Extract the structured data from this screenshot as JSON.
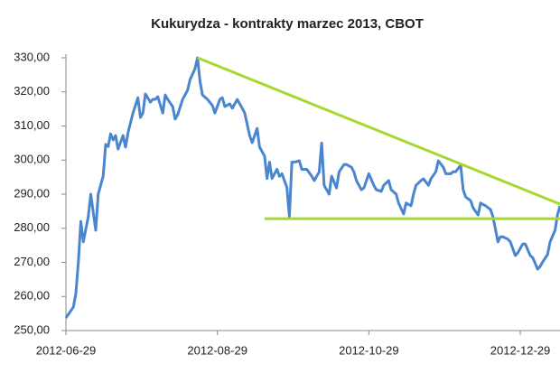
{
  "chart_data": {
    "type": "line",
    "title": "Kukurydza - kontrakty marzec 2013, CBOT",
    "x": [
      "2012-06-29",
      "2012-07-02",
      "2012-07-03",
      "2012-07-04",
      "2012-07-05",
      "2012-07-06",
      "2012-07-08",
      "2012-07-09",
      "2012-07-11",
      "2012-07-12",
      "2012-07-14",
      "2012-07-15",
      "2012-07-16",
      "2012-07-17",
      "2012-07-18",
      "2012-07-19",
      "2012-07-20",
      "2012-07-22",
      "2012-07-23",
      "2012-07-24",
      "2012-07-26",
      "2012-07-28",
      "2012-07-29",
      "2012-07-30",
      "2012-07-31",
      "2012-08-02",
      "2012-08-03",
      "2012-08-04",
      "2012-08-05",
      "2012-08-07",
      "2012-08-08",
      "2012-08-09",
      "2012-08-11",
      "2012-08-12",
      "2012-08-13",
      "2012-08-15",
      "2012-08-17",
      "2012-08-18",
      "2012-08-20",
      "2012-08-21",
      "2012-08-22",
      "2012-08-23",
      "2012-08-25",
      "2012-08-27",
      "2012-08-28",
      "2012-08-30",
      "2012-08-31",
      "2012-09-01",
      "2012-09-03",
      "2012-09-04",
      "2012-09-06",
      "2012-09-08",
      "2012-09-09",
      "2012-09-11",
      "2012-09-12",
      "2012-09-14",
      "2012-09-15",
      "2012-09-17",
      "2012-09-18",
      "2012-09-19",
      "2012-09-20",
      "2012-09-22",
      "2012-09-23",
      "2012-09-24",
      "2012-09-26",
      "2012-09-27",
      "2012-09-28",
      "2012-09-29",
      "2012-10-01",
      "2012-10-02",
      "2012-10-04",
      "2012-10-06",
      "2012-10-07",
      "2012-10-09",
      "2012-10-10",
      "2012-10-11",
      "2012-10-13",
      "2012-10-14",
      "2012-10-16",
      "2012-10-17",
      "2012-10-19",
      "2012-10-20",
      "2012-10-22",
      "2012-10-23",
      "2012-10-24",
      "2012-10-26",
      "2012-10-27",
      "2012-10-29",
      "2012-10-31",
      "2012-11-01",
      "2012-11-03",
      "2012-11-04",
      "2012-11-06",
      "2012-11-07",
      "2012-11-09",
      "2012-11-10",
      "2012-11-12",
      "2012-11-13",
      "2012-11-15",
      "2012-11-16",
      "2012-11-17",
      "2012-11-19",
      "2012-11-20",
      "2012-11-22",
      "2012-11-23",
      "2012-11-25",
      "2012-11-26",
      "2012-11-28",
      "2012-11-29",
      "2012-12-01",
      "2012-12-02",
      "2012-12-03",
      "2012-12-05",
      "2012-12-06",
      "2012-12-07",
      "2012-12-09",
      "2012-12-10",
      "2012-12-12",
      "2012-12-13",
      "2012-12-15",
      "2012-12-17",
      "2012-12-18",
      "2012-12-20",
      "2012-12-21",
      "2012-12-22",
      "2012-12-24",
      "2012-12-25",
      "2012-12-27",
      "2012-12-28",
      "2012-12-30",
      "2012-12-31",
      "2013-01-02",
      "2013-01-03",
      "2013-01-05",
      "2013-01-06",
      "2013-01-07",
      "2013-01-09",
      "2013-01-10",
      "2013-01-12",
      "2013-01-13",
      "2013-01-14"
    ],
    "series": [
      {
        "color": "#4a86cf",
        "values": [
          253.7,
          256.9,
          260.9,
          270,
          282,
          276,
          283.4,
          290,
          279.4,
          290,
          295.3,
          304.6,
          304,
          307.7,
          305.9,
          307.2,
          303.2,
          307.2,
          303.8,
          308,
          313.8,
          318.3,
          312.5,
          313.8,
          319.4,
          317,
          317.8,
          317.8,
          318.6,
          313.8,
          319.1,
          317.8,
          315.7,
          312,
          313.3,
          317.8,
          320.5,
          323.6,
          326.8,
          330,
          323.1,
          319.1,
          317.8,
          316,
          313.8,
          317.8,
          318.3,
          315.7,
          316.5,
          315.2,
          317.8,
          315.2,
          313.8,
          307.2,
          305.1,
          309.3,
          303.8,
          301.2,
          294.6,
          299.4,
          294.6,
          297.3,
          295.2,
          296,
          292,
          283.4,
          299.4,
          299.4,
          299.8,
          297.3,
          297.3,
          295.3,
          294,
          296.5,
          305,
          292.6,
          290,
          295.3,
          291.8,
          296.5,
          298.7,
          298.7,
          297.9,
          296.5,
          294,
          291.3,
          291.8,
          296,
          292.6,
          291.3,
          290.8,
          292.6,
          294,
          291.3,
          290,
          287.4,
          284.2,
          287.4,
          286.6,
          290,
          292.6,
          294,
          294.5,
          292.6,
          294.5,
          296.6,
          299.8,
          297.9,
          296,
          296,
          296.6,
          296.6,
          298.5,
          291.3,
          289.2,
          288.1,
          286,
          283.9,
          287.4,
          286.6,
          285.5,
          283.4,
          276,
          277.5,
          277.5,
          276.8,
          276,
          272,
          272.8,
          275.4,
          275.4,
          272,
          271.4,
          268,
          268.8,
          270.1,
          272.3,
          276,
          279.4,
          283.9,
          286.6
        ]
      }
    ],
    "trend_lines": [
      {
        "color": "#a6d930",
        "x": [
          "2012-08-21",
          "2013-01-14"
        ],
        "values": [
          330,
          287.1
        ]
      },
      {
        "color": "#a6d930",
        "x": [
          "2012-09-17",
          "2013-01-14"
        ],
        "values": [
          282.8,
          282.8
        ]
      }
    ],
    "xlim": [
      "2012-06-29",
      "2013-01-14"
    ],
    "xticks": [
      "2012-06-29",
      "2012-08-29",
      "2012-10-29",
      "2012-12-29"
    ],
    "ylim": [
      250,
      330
    ],
    "yticks": [
      {
        "value": 250,
        "label": "250,00"
      },
      {
        "value": 260,
        "label": "260,00"
      },
      {
        "value": 270,
        "label": "270,00"
      },
      {
        "value": 280,
        "label": "280,00"
      },
      {
        "value": 290,
        "label": "290,00"
      },
      {
        "value": 300,
        "label": "300,00"
      },
      {
        "value": 310,
        "label": "310,00"
      },
      {
        "value": 320,
        "label": "320,00"
      },
      {
        "value": 330,
        "label": "330,00"
      }
    ],
    "grid": false
  }
}
